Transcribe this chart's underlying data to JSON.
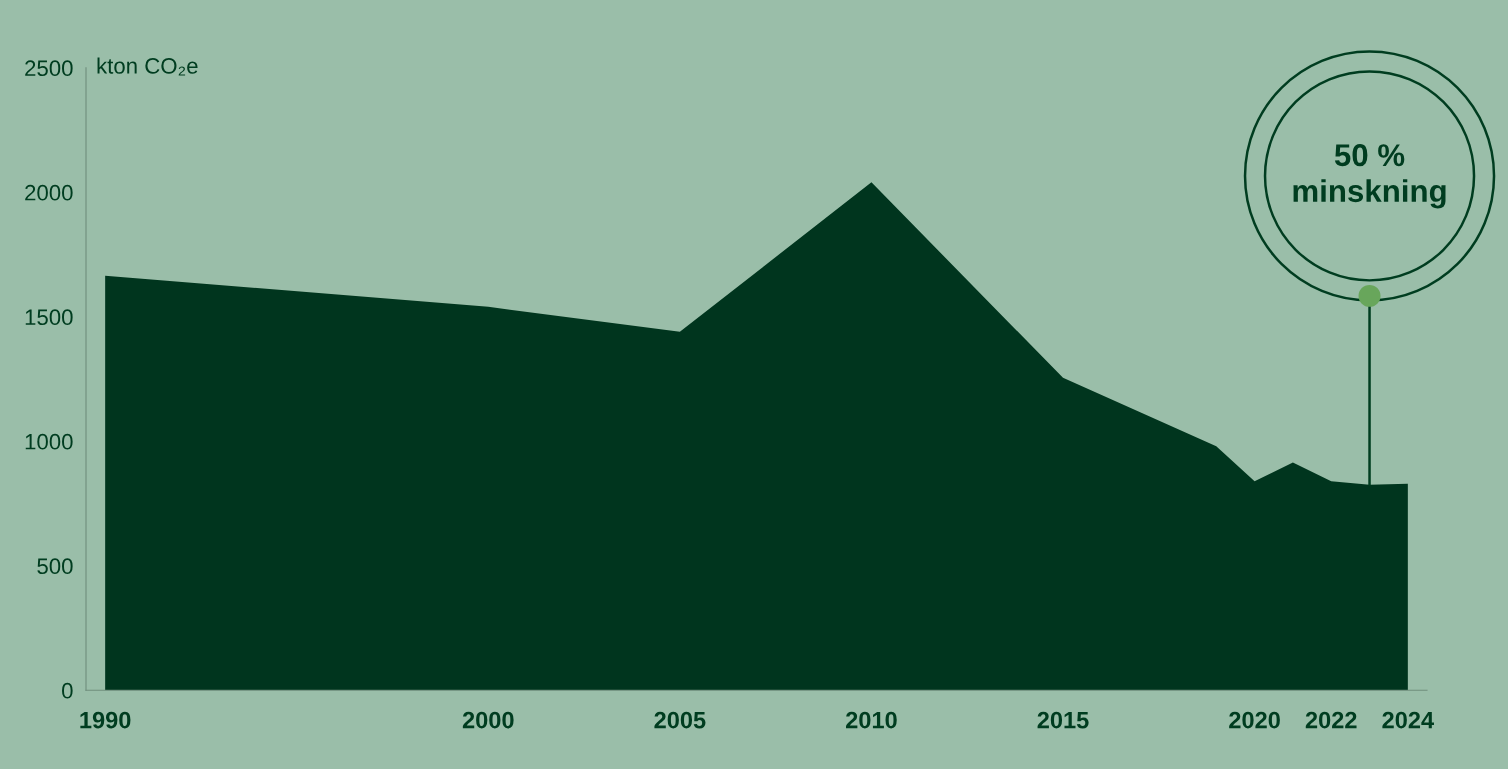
{
  "chart_data": {
    "type": "area",
    "ylabel": "kton CO₂e",
    "x": [
      1990,
      2000,
      2005,
      2010,
      2015,
      2019,
      2020,
      2021,
      2022,
      2023,
      2024
    ],
    "series": [
      {
        "color": "#00351e",
        "values": [
          1665,
          1540,
          1440,
          2040,
          1255,
          980,
          840,
          915,
          840,
          825,
          830
        ]
      }
    ],
    "xlim": [
      1989.5,
      2024.5
    ],
    "xticks": [
      1990,
      2000,
      2005,
      2010,
      2015,
      2020,
      2022,
      2024
    ],
    "ylim": [
      0,
      2500
    ],
    "yticks": [
      0,
      500,
      1000,
      1500,
      2000,
      2500
    ],
    "annotations": [
      {
        "text": "50 %\nminskning",
        "x": 2023,
        "y": 825
      }
    ]
  }
}
